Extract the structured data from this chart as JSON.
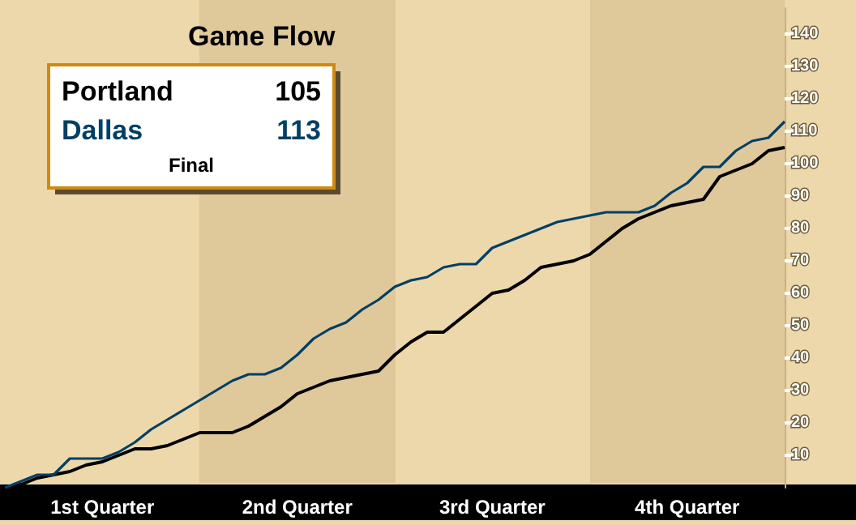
{
  "chart_data": {
    "type": "line",
    "title": "Game Flow",
    "annotations": [
      "105",
      "113",
      "Final"
    ],
    "categories": [
      null,
      null,
      null,
      null,
      null,
      null,
      "1st Quarter",
      null,
      null,
      null,
      null,
      null,
      null,
      null,
      null,
      null,
      null,
      null,
      "2nd Quarter",
      null,
      null,
      null,
      null,
      null,
      null,
      null,
      null,
      null,
      null,
      null,
      "3rd Quarter",
      null,
      null,
      null,
      null,
      null,
      null,
      null,
      null,
      null,
      null,
      null,
      "4th Quarter",
      null,
      null,
      null,
      null,
      null,
      null
    ],
    "series": [
      {
        "name": "Portland",
        "color": "#000000",
        "values": [
          0,
          1,
          3,
          4,
          5,
          7,
          8,
          10,
          12,
          12,
          13,
          15,
          17,
          17,
          17,
          19,
          22,
          25,
          29,
          31,
          33,
          34,
          35,
          36,
          41,
          45,
          48,
          48,
          52,
          56,
          60,
          61,
          64,
          68,
          69,
          70,
          72,
          76,
          80,
          83,
          85,
          87,
          88,
          89,
          96,
          98,
          100,
          104,
          105
        ]
      },
      {
        "name": "Dallas",
        "color": "#003f66",
        "values": [
          0,
          2,
          4,
          4,
          9,
          9,
          9,
          11,
          14,
          18,
          21,
          24,
          27,
          30,
          33,
          35,
          35,
          37,
          41,
          46,
          49,
          51,
          55,
          58,
          62,
          64,
          65,
          68,
          69,
          69,
          74,
          76,
          78,
          80,
          82,
          83,
          84,
          85,
          85,
          85,
          87,
          91,
          94,
          99,
          99,
          104,
          107,
          108,
          113
        ]
      }
    ],
    "ylim": [
      0,
      148
    ],
    "yticks": [
      10,
      20,
      30,
      40,
      50,
      60,
      70,
      80,
      90,
      100,
      110,
      120,
      130,
      140
    ],
    "marker": "none",
    "line_style": "solid"
  }
}
